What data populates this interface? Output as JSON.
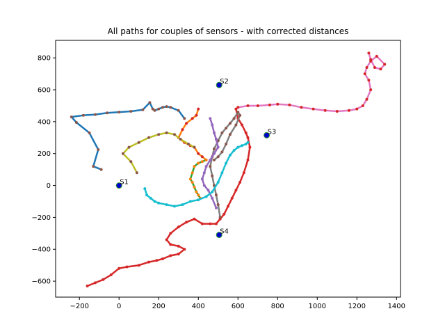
{
  "chart_data": {
    "type": "line",
    "title": "All paths for couples of sensors - with corrected distances",
    "xlabel": "",
    "ylabel": "",
    "xlim": [
      -320,
      1420
    ],
    "ylim": [
      -700,
      910
    ],
    "xticks": [
      -200,
      0,
      200,
      400,
      600,
      800,
      1000,
      1200,
      1400
    ],
    "yticks": [
      -600,
      -400,
      -200,
      0,
      200,
      400,
      600,
      800
    ],
    "grid": false,
    "sensors": [
      {
        "label": "S1",
        "x": 0,
        "y": 0
      },
      {
        "label": "S2",
        "x": 505,
        "y": 630
      },
      {
        "label": "S3",
        "x": 745,
        "y": 315
      },
      {
        "label": "S4",
        "x": 505,
        "y": -310
      }
    ],
    "series": [
      {
        "line_color": "#1f77b4",
        "marker_color": "#8c564b",
        "x": [
          -90,
          -130,
          -105,
          -150,
          -215,
          -240,
          -180,
          -120,
          -60,
          0,
          60,
          120,
          155,
          170,
          180,
          200,
          220,
          240,
          260,
          300,
          330
        ],
        "y": [
          100,
          120,
          225,
          330,
          395,
          430,
          440,
          445,
          455,
          460,
          465,
          475,
          520,
          480,
          470,
          480,
          490,
          495,
          490,
          470,
          420
        ]
      },
      {
        "line_color": "#ff7f0e",
        "marker_color": "#d62728",
        "x": [
          400,
          390,
          370,
          340,
          320,
          300,
          330,
          360,
          380,
          400,
          420,
          440
        ],
        "y": [
          480,
          440,
          420,
          390,
          350,
          300,
          270,
          250,
          240,
          200,
          180,
          160
        ]
      },
      {
        "line_color": "#2ca02c",
        "marker_color": "#ff7f0e",
        "x": [
          440,
          420,
          400,
          380,
          370,
          360,
          370,
          380,
          390,
          400,
          410
        ],
        "y": [
          160,
          150,
          140,
          120,
          80,
          40,
          20,
          -10,
          -40,
          -60,
          -80
        ]
      },
      {
        "line_color": "#bcbd22",
        "marker_color": "#8c564b",
        "x": [
          90,
          60,
          20,
          50,
          100,
          150,
          200,
          240,
          280,
          310,
          350,
          380
        ],
        "y": [
          80,
          150,
          200,
          240,
          270,
          300,
          320,
          330,
          320,
          290,
          260,
          240
        ]
      },
      {
        "line_color": "#d62728",
        "marker_color": "#d62728",
        "x": [
          590,
          600,
          620,
          640,
          650,
          660,
          650,
          630,
          610,
          590,
          570,
          550,
          530,
          510,
          490,
          460,
          420,
          380,
          340,
          300,
          260,
          240,
          260,
          300,
          330,
          300,
          260,
          220,
          190,
          150,
          100,
          40,
          0,
          -40,
          -80,
          -120,
          -160
        ],
        "y": [
          480,
          420,
          380,
          330,
          300,
          240,
          160,
          80,
          20,
          -30,
          -80,
          -130,
          -180,
          -210,
          -240,
          -240,
          -240,
          -210,
          -230,
          -260,
          -300,
          -340,
          -370,
          -380,
          -400,
          -430,
          -440,
          -460,
          -470,
          -480,
          -500,
          -510,
          -520,
          -560,
          -590,
          -610,
          -630
        ]
      },
      {
        "line_color": "#7f7f7f",
        "marker_color": "#8c564b",
        "x": [
          480,
          500,
          520,
          540,
          560,
          590,
          610,
          600,
          580,
          560,
          540,
          520,
          500,
          480,
          470,
          460,
          470,
          480,
          490,
          500,
          510
        ],
        "y": [
          160,
          180,
          210,
          260,
          320,
          380,
          440,
          460,
          420,
          390,
          360,
          330,
          280,
          230,
          180,
          120,
          60,
          0,
          -60,
          -120,
          -200
        ]
      },
      {
        "line_color": "#e377c2",
        "marker_color": "#d62728",
        "x": [
          600,
          650,
          700,
          760,
          800,
          860,
          920,
          980,
          1040,
          1100,
          1160,
          1200,
          1230,
          1250,
          1270,
          1260,
          1240,
          1250,
          1270,
          1300,
          1340,
          1320,
          1290,
          1270,
          1260
        ],
        "y": [
          490,
          500,
          500,
          505,
          510,
          505,
          490,
          480,
          470,
          465,
          470,
          480,
          500,
          540,
          600,
          660,
          700,
          740,
          780,
          810,
          760,
          730,
          740,
          790,
          830
        ]
      },
      {
        "line_color": "#9467bd",
        "marker_color": "#9467bd",
        "x": [
          460,
          470,
          480,
          490,
          500,
          480,
          460,
          440,
          430,
          420,
          430,
          450,
          470,
          490
        ],
        "y": [
          420,
          380,
          330,
          290,
          240,
          200,
          160,
          120,
          80,
          40,
          0,
          -30,
          -80,
          -140
        ]
      },
      {
        "line_color": "#17becf",
        "marker_color": "#17becf",
        "x": [
          130,
          140,
          160,
          180,
          200,
          240,
          280,
          320,
          360,
          400,
          440,
          470,
          500,
          520,
          540,
          560,
          580,
          600,
          620,
          640,
          650
        ],
        "y": [
          -20,
          -60,
          -80,
          -100,
          -110,
          -120,
          -130,
          -120,
          -100,
          -90,
          -70,
          -40,
          20,
          80,
          140,
          190,
          220,
          240,
          250,
          260,
          270
        ]
      }
    ]
  }
}
